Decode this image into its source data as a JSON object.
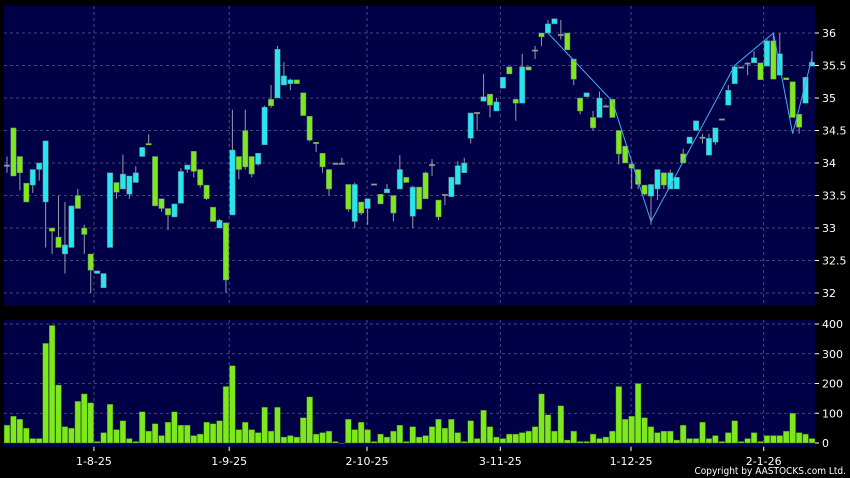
{
  "copyright": "Copyright by AASTOCKS.com Ltd.",
  "colors": {
    "background": "#000000",
    "panel": "#000046",
    "grid": "#5a5a8c",
    "up": "#26e6f2",
    "down": "#7ee81e",
    "wick": "#9a9aaa",
    "volume": "#7ee81e",
    "trend_line": "#4aa8f0"
  },
  "chart_data": [
    {
      "type": "candlestick",
      "price_axis": {
        "ticks": [
          "32",
          "32.5",
          "33",
          "33.5",
          "34",
          "34.5",
          "35",
          "35.5",
          "36"
        ],
        "range": [
          31.85,
          36.4
        ]
      },
      "date_ticks": [
        {
          "label": "1-8-25",
          "at_candle": 13.5
        },
        {
          "label": "1-9-25",
          "at_candle": 34.5
        },
        {
          "label": "2-10-25",
          "at_candle": 55.9
        },
        {
          "label": "3-11-25",
          "at_candle": 76.6
        },
        {
          "label": "1-12-25",
          "at_candle": 96.9
        },
        {
          "label": "2-1-26",
          "at_candle": 117.5
        }
      ],
      "grid": true,
      "ohlc": [
        [
          33.95,
          33.97,
          34.1,
          33.85
        ],
        [
          34.54,
          33.8,
          34.54,
          33.8
        ],
        [
          34.1,
          33.85,
          34.1,
          33.58
        ],
        [
          33.69,
          33.4,
          33.69,
          33.4
        ],
        [
          33.66,
          33.9,
          33.9,
          33.54
        ],
        [
          33.9,
          34.0,
          34.0,
          33.73
        ],
        [
          33.4,
          34.34,
          34.34,
          32.7
        ],
        [
          33.0,
          32.95,
          33.0,
          32.6
        ],
        [
          32.86,
          32.7,
          33.5,
          32.7
        ],
        [
          32.6,
          32.74,
          33.4,
          32.3
        ],
        [
          32.7,
          33.34,
          33.34,
          32.7
        ],
        [
          33.5,
          33.3,
          33.6,
          33.3
        ],
        [
          33.0,
          32.9,
          33.05,
          32.6
        ],
        [
          32.6,
          32.35,
          32.6,
          32.0
        ],
        [
          32.3,
          32.34,
          32.34,
          32.3
        ],
        [
          32.08,
          32.3,
          32.3,
          32.08
        ],
        [
          32.7,
          33.85,
          33.85,
          32.7
        ],
        [
          33.7,
          33.55,
          33.7,
          33.45
        ],
        [
          33.6,
          33.83,
          34.13,
          33.6
        ],
        [
          33.52,
          33.8,
          33.8,
          33.45
        ],
        [
          33.7,
          33.85,
          33.95,
          33.7
        ],
        [
          34.1,
          34.24,
          34.24,
          34.1
        ],
        [
          34.3,
          34.28,
          34.44,
          34.28
        ],
        [
          34.1,
          33.34,
          34.1,
          33.34
        ],
        [
          33.45,
          33.3,
          33.45,
          33.25
        ],
        [
          33.3,
          33.2,
          33.3,
          32.97
        ],
        [
          33.17,
          33.37,
          33.37,
          33.17
        ],
        [
          33.38,
          33.87,
          33.92,
          33.38
        ],
        [
          33.9,
          33.97,
          33.97,
          33.85
        ],
        [
          34.18,
          33.87,
          34.18,
          33.78
        ],
        [
          33.9,
          33.66,
          33.9,
          33.62
        ],
        [
          33.66,
          33.45,
          33.66,
          33.43
        ],
        [
          33.32,
          33.1,
          33.32,
          33.1
        ],
        [
          33.0,
          33.12,
          33.14,
          33.0
        ],
        [
          33.08,
          32.2,
          33.08,
          32.0
        ],
        [
          33.2,
          34.2,
          34.82,
          33.2
        ],
        [
          34.1,
          33.9,
          34.1,
          33.75
        ],
        [
          34.5,
          33.94,
          34.82,
          33.9
        ],
        [
          34.1,
          33.83,
          34.1,
          33.78
        ],
        [
          33.98,
          34.15,
          34.15,
          33.96
        ],
        [
          34.28,
          34.86,
          34.88,
          34.28
        ],
        [
          34.98,
          34.88,
          35.2,
          34.85
        ],
        [
          35.0,
          35.75,
          35.8,
          35.0
        ],
        [
          35.2,
          35.34,
          35.55,
          35.2
        ],
        [
          35.22,
          35.28,
          35.3,
          35.12
        ],
        [
          35.28,
          35.22,
          35.28,
          35.22
        ],
        [
          35.08,
          34.73,
          35.08,
          34.73
        ],
        [
          34.72,
          34.35,
          34.72,
          34.33
        ],
        [
          34.32,
          34.3,
          34.32,
          34.17
        ],
        [
          34.15,
          33.94,
          34.15,
          33.85
        ],
        [
          33.9,
          33.6,
          33.9,
          33.5
        ],
        [
          34.0,
          34.0,
          34.0,
          33.98
        ],
        [
          34.0,
          34.0,
          34.08,
          34.0
        ],
        [
          33.67,
          33.29,
          33.67,
          33.25
        ],
        [
          33.1,
          33.67,
          33.7,
          33.0
        ],
        [
          33.4,
          33.23,
          33.4,
          33.2
        ],
        [
          33.3,
          33.45,
          33.45,
          33.05
        ],
        [
          33.68,
          33.68,
          33.68,
          33.68
        ],
        [
          33.52,
          33.37,
          33.52,
          33.37
        ],
        [
          33.54,
          33.6,
          33.68,
          33.54
        ],
        [
          33.5,
          33.23,
          33.5,
          33.1
        ],
        [
          33.6,
          33.9,
          34.12,
          33.6
        ],
        [
          33.78,
          33.7,
          33.78,
          33.7
        ],
        [
          33.18,
          33.63,
          33.65,
          33.0
        ],
        [
          33.63,
          33.29,
          33.63,
          33.29
        ],
        [
          33.85,
          33.45,
          33.87,
          33.45
        ],
        [
          33.98,
          33.98,
          34.06,
          33.8
        ],
        [
          33.43,
          33.17,
          33.43,
          33.12
        ],
        [
          33.52,
          33.52,
          33.52,
          33.35
        ],
        [
          33.48,
          33.78,
          33.78,
          33.48
        ],
        [
          33.67,
          33.96,
          34.03,
          33.67
        ],
        [
          33.85,
          34.0,
          34.08,
          33.85
        ],
        [
          34.38,
          34.77,
          34.77,
          34.3
        ],
        [
          34.78,
          34.78,
          34.78,
          34.5
        ],
        [
          34.95,
          35.02,
          35.37,
          34.95
        ],
        [
          35.06,
          34.89,
          35.06,
          34.7
        ],
        [
          34.8,
          34.94,
          35.0,
          34.8
        ],
        [
          35.15,
          35.32,
          35.32,
          35.15
        ],
        [
          35.48,
          35.37,
          35.48,
          35.37
        ],
        [
          34.98,
          34.92,
          34.98,
          34.65
        ],
        [
          34.92,
          35.48,
          35.68,
          34.92
        ],
        [
          35.48,
          35.43,
          35.48,
          35.43
        ],
        [
          35.74,
          35.74,
          35.8,
          35.6
        ],
        [
          36.0,
          35.94,
          36.0,
          35.8
        ],
        [
          36.0,
          36.14,
          36.2,
          36.0
        ],
        [
          36.14,
          36.22,
          36.22,
          36.14
        ],
        [
          35.98,
          35.98,
          36.2,
          35.9
        ],
        [
          36.0,
          35.74,
          36.0,
          35.74
        ],
        [
          35.6,
          35.29,
          35.6,
          35.2
        ],
        [
          35.0,
          34.8,
          35.0,
          34.75
        ],
        [
          35.02,
          35.08,
          35.08,
          35.02
        ],
        [
          34.7,
          34.54,
          34.8,
          34.5
        ],
        [
          34.7,
          35.0,
          35.1,
          34.7
        ],
        [
          34.88,
          34.88,
          34.9,
          34.88
        ],
        [
          34.98,
          34.7,
          34.98,
          34.7
        ],
        [
          34.5,
          34.14,
          34.5,
          33.98
        ],
        [
          34.26,
          34.0,
          34.26,
          34.0
        ],
        [
          33.98,
          33.92,
          34.0,
          33.6
        ],
        [
          33.9,
          33.67,
          33.9,
          33.6
        ],
        [
          33.66,
          33.52,
          33.66,
          33.5
        ],
        [
          33.49,
          33.67,
          33.67,
          33.05
        ],
        [
          33.6,
          33.9,
          33.9,
          33.43
        ],
        [
          33.85,
          33.66,
          33.85,
          33.6
        ],
        [
          33.6,
          33.85,
          33.9,
          33.6
        ],
        [
          33.6,
          33.78,
          33.78,
          33.6
        ],
        [
          34.14,
          34.0,
          34.22,
          34.0
        ],
        [
          34.3,
          34.4,
          34.4,
          34.3
        ],
        [
          34.5,
          34.65,
          34.65,
          34.5
        ],
        [
          34.4,
          34.4,
          34.45,
          34.3
        ],
        [
          34.12,
          34.38,
          34.45,
          34.12
        ],
        [
          34.32,
          34.54,
          34.54,
          34.28
        ],
        [
          34.68,
          34.68,
          34.68,
          34.68
        ],
        [
          34.89,
          35.12,
          35.2,
          34.89
        ],
        [
          35.22,
          35.48,
          35.5,
          35.22
        ],
        [
          35.48,
          35.48,
          35.48,
          35.48
        ],
        [
          35.54,
          35.54,
          35.55,
          35.35
        ],
        [
          35.54,
          35.62,
          35.72,
          35.54
        ],
        [
          35.54,
          35.28,
          35.54,
          35.28
        ],
        [
          35.49,
          35.88,
          35.9,
          35.49
        ],
        [
          35.88,
          35.29,
          36.0,
          35.29
        ],
        [
          35.35,
          35.68,
          36.0,
          35.35
        ],
        [
          35.31,
          35.28,
          35.31,
          35.28
        ],
        [
          35.25,
          34.7,
          35.25,
          34.7
        ],
        [
          34.75,
          34.55,
          34.75,
          34.45
        ],
        [
          34.92,
          35.32,
          35.32,
          34.92
        ],
        [
          35.49,
          35.55,
          35.72,
          35.49
        ]
      ],
      "trend_line": [
        [
          84,
          36.0
        ],
        [
          94,
          34.95
        ],
        [
          100,
          33.1
        ],
        [
          113,
          35.5
        ],
        [
          119,
          36.0
        ],
        [
          122,
          34.45
        ],
        [
          125,
          35.62
        ]
      ]
    },
    {
      "type": "bar",
      "volume_axis": {
        "ticks": [
          "0",
          "100",
          "200",
          "300",
          "400"
        ],
        "range": [
          0,
          400
        ]
      },
      "grid": true,
      "values": [
        60,
        90,
        80,
        50,
        15,
        15,
        335,
        395,
        195,
        55,
        50,
        140,
        165,
        135,
        5,
        35,
        130,
        45,
        75,
        15,
        5,
        105,
        40,
        65,
        25,
        70,
        105,
        60,
        60,
        25,
        30,
        70,
        65,
        75,
        190,
        260,
        45,
        70,
        45,
        35,
        120,
        40,
        120,
        20,
        25,
        20,
        85,
        155,
        30,
        35,
        40,
        5,
        0,
        80,
        45,
        70,
        45,
        5,
        30,
        20,
        40,
        60,
        5,
        55,
        20,
        25,
        55,
        80,
        50,
        80,
        35,
        5,
        75,
        15,
        110,
        55,
        20,
        15,
        30,
        30,
        35,
        40,
        55,
        165,
        95,
        40,
        125,
        10,
        40,
        5,
        5,
        30,
        15,
        20,
        40,
        190,
        80,
        90,
        200,
        85,
        55,
        35,
        40,
        40,
        10,
        60,
        15,
        15,
        70,
        15,
        25,
        5,
        35,
        75,
        5,
        15,
        35,
        5,
        25,
        25,
        25,
        40,
        100,
        35,
        30,
        15
      ]
    }
  ]
}
